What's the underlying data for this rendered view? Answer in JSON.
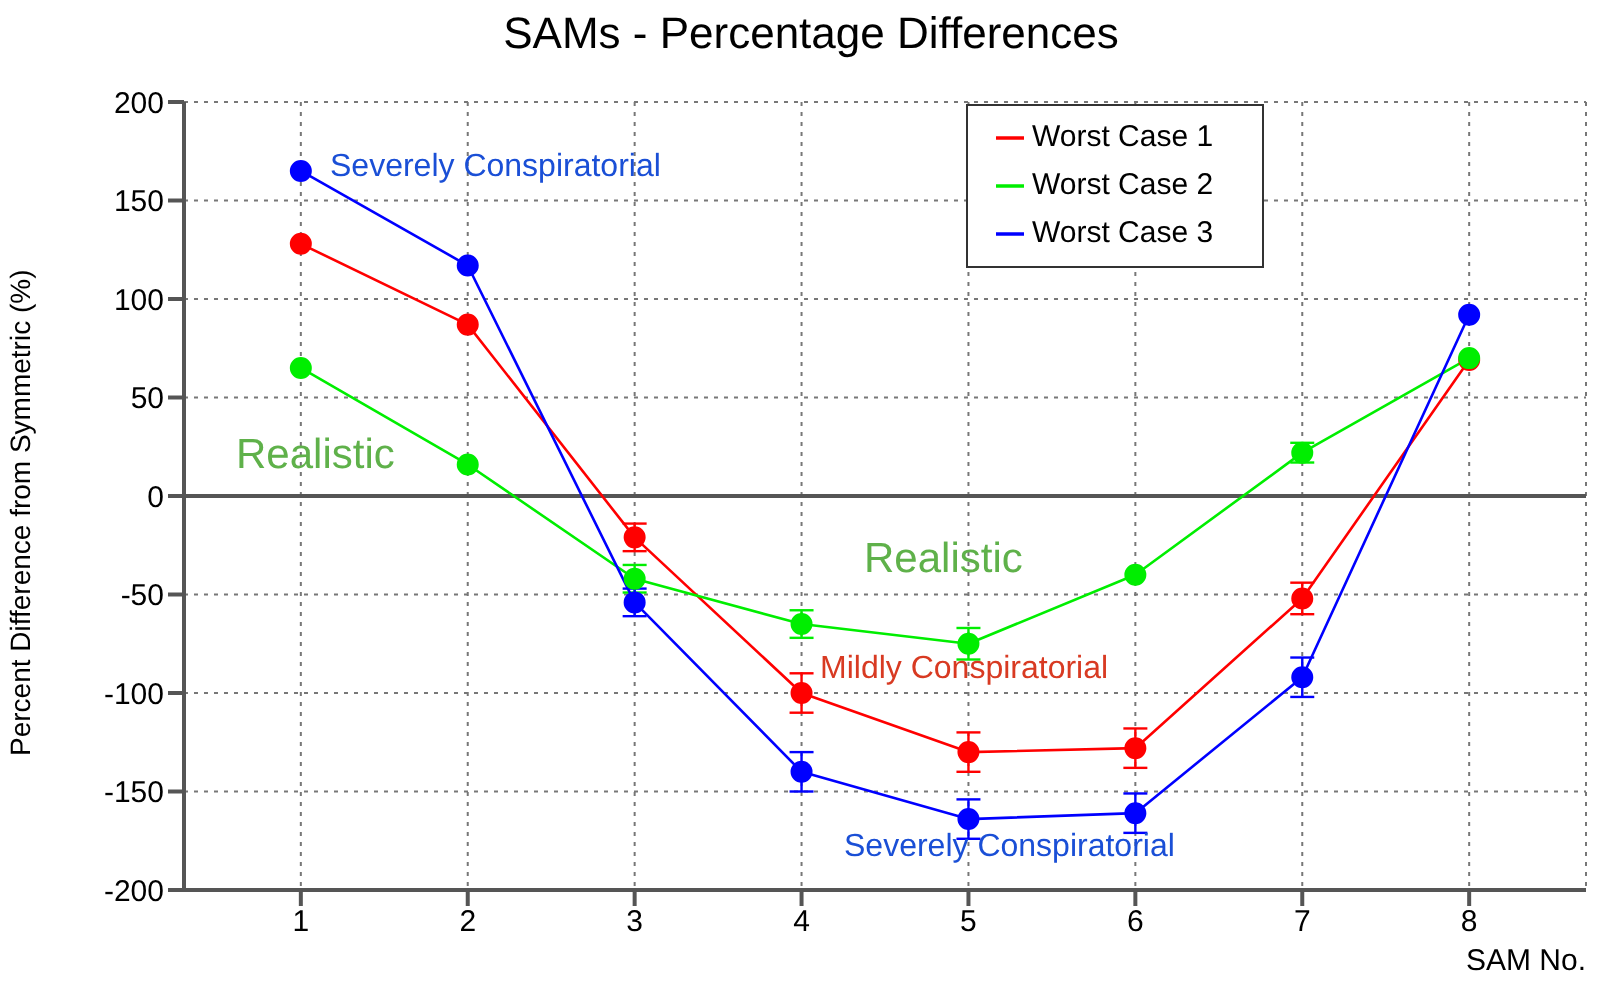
{
  "chart_data": {
    "type": "line",
    "title": "SAMs - Percentage Differences",
    "xlabel": "SAM No.",
    "ylabel": "Percent Difference from Symmetric (%)",
    "x": [
      1,
      2,
      3,
      4,
      5,
      6,
      7,
      8
    ],
    "series": [
      {
        "name": "Worst Case 1",
        "color": "#ff0000",
        "values": [
          128,
          87,
          -21,
          -100,
          -130,
          -128,
          -52,
          69
        ],
        "errors": [
          null,
          null,
          7,
          10,
          10,
          10,
          8,
          null
        ]
      },
      {
        "name": "Worst Case 2",
        "color": "#00ee00",
        "values": [
          65,
          16,
          -42,
          -65,
          -75,
          -40,
          22,
          70
        ],
        "errors": [
          null,
          null,
          7,
          7,
          8,
          null,
          5,
          null
        ]
      },
      {
        "name": "Worst Case 3",
        "color": "#0000ff",
        "values": [
          165,
          117,
          -54,
          -140,
          -164,
          -161,
          -92,
          92
        ],
        "errors": [
          null,
          null,
          7,
          10,
          10,
          10,
          10,
          null
        ]
      }
    ],
    "xlim": [
      0.3,
      8.7
    ],
    "xticks": [
      1,
      2,
      3,
      4,
      5,
      6,
      7,
      8
    ],
    "ylim": [
      -200,
      200
    ],
    "yticks": [
      -200,
      -150,
      -100,
      -50,
      0,
      50,
      100,
      150,
      200
    ],
    "ref_lines": [
      {
        "axis": "y",
        "value": 0,
        "color": "#555555"
      }
    ],
    "annotations": [
      "Severely Conspiratorial",
      "Realistic",
      "Realistic",
      "Mildly Conspiratorial",
      "Severely Conspiratorial"
    ],
    "grid": true,
    "legend": "top right",
    "marker": "circle",
    "line_style": "solid"
  }
}
